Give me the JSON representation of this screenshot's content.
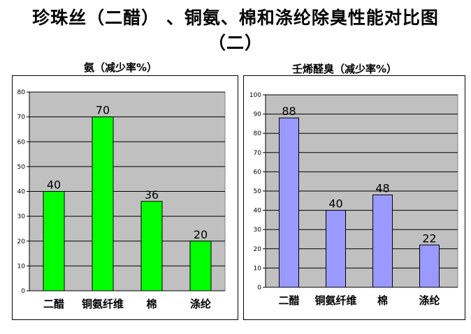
{
  "main_title_line1": "珍珠丝（二醋） 、铜氨、棉和涤纶除臭性能对比图",
  "main_title_line2": "（二）",
  "chart_data": [
    {
      "type": "bar",
      "title": "氨（减少率%）",
      "categories": [
        "二醋",
        "铜氨纤维",
        "棉",
        "涤纶"
      ],
      "values": [
        40,
        70,
        36,
        20
      ],
      "ylim": [
        0,
        80
      ],
      "ytick_step": 10,
      "bar_color": "#00ff00",
      "plot_bg": "#c0c0c0",
      "grid": true
    },
    {
      "type": "bar",
      "title": "壬烯醛臭（减少率%）",
      "categories": [
        "二醋",
        "铜氨纤维",
        "棉",
        "涤纶"
      ],
      "values": [
        88,
        40,
        48,
        22
      ],
      "ylim": [
        0,
        100
      ],
      "ytick_step": 10,
      "bar_color": "#9999ff",
      "plot_bg": "#c0c0c0",
      "grid": true
    }
  ]
}
